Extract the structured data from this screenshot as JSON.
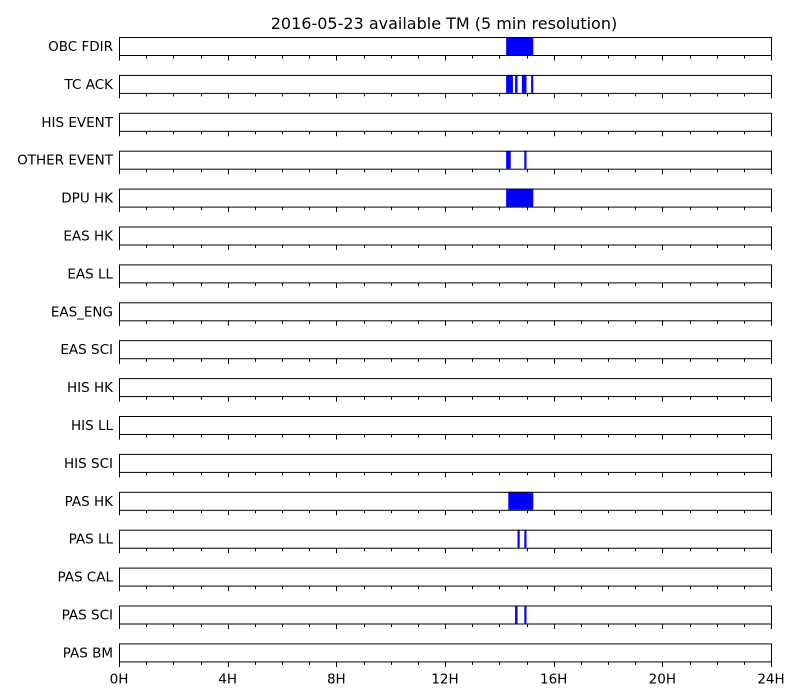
{
  "chart_data": {
    "type": "timeline",
    "title": "2016-05-23 available TM (5 min resolution)",
    "x_unit": "hour",
    "xlim": [
      0,
      24
    ],
    "x_major_ticks": [
      0,
      4,
      8,
      12,
      16,
      20,
      24
    ],
    "x_tick_labels": [
      "0H",
      "4H",
      "8H",
      "12H",
      "16H",
      "20H",
      "24H"
    ],
    "x_minor_tick_step": 1,
    "bar_color": "#0000ff",
    "rows": [
      {
        "label": "OBC FDIR",
        "intervals": [
          [
            14.25,
            15.25
          ]
        ]
      },
      {
        "label": "TC ACK",
        "intervals": [
          [
            14.25,
            14.5
          ],
          [
            14.58,
            14.67
          ],
          [
            14.83,
            15.0
          ],
          [
            15.17,
            15.25
          ]
        ]
      },
      {
        "label": "HIS EVENT",
        "intervals": []
      },
      {
        "label": "OTHER EVENT",
        "intervals": [
          [
            14.25,
            14.42
          ],
          [
            14.92,
            15.0
          ]
        ]
      },
      {
        "label": "DPU HK",
        "intervals": [
          [
            14.25,
            15.25
          ]
        ]
      },
      {
        "label": "EAS HK",
        "intervals": []
      },
      {
        "label": "EAS LL",
        "intervals": []
      },
      {
        "label": "EAS_ENG",
        "intervals": []
      },
      {
        "label": "EAS SCI",
        "intervals": []
      },
      {
        "label": "HIS HK",
        "intervals": []
      },
      {
        "label": "HIS LL",
        "intervals": []
      },
      {
        "label": "HIS SCI",
        "intervals": []
      },
      {
        "label": "PAS HK",
        "intervals": [
          [
            14.33,
            15.25
          ]
        ]
      },
      {
        "label": "PAS LL",
        "intervals": [
          [
            14.67,
            14.75
          ],
          [
            14.92,
            15.0
          ]
        ]
      },
      {
        "label": "PAS CAL",
        "intervals": []
      },
      {
        "label": "PAS SCI",
        "intervals": [
          [
            14.58,
            14.67
          ],
          [
            14.92,
            15.0
          ]
        ]
      },
      {
        "label": "PAS BM",
        "intervals": []
      }
    ]
  }
}
